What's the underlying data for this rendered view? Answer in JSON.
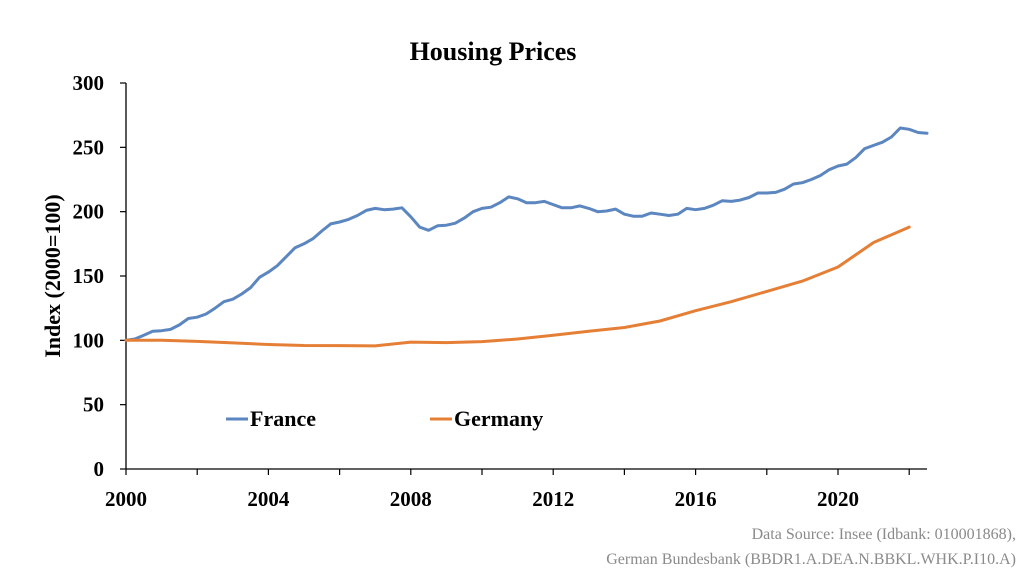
{
  "chart_data": {
    "type": "line",
    "title": "Housing Prices",
    "xlabel": "",
    "ylabel": "Index (2000=100)",
    "xlim": [
      2000,
      2022.5
    ],
    "ylim": [
      0,
      300
    ],
    "x_ticks": [
      2000,
      2004,
      2008,
      2012,
      2016,
      2020
    ],
    "x_tick_labels": [
      "2000",
      "2004",
      "2008",
      "2012",
      "2016",
      "2020"
    ],
    "y_ticks": [
      0,
      50,
      100,
      150,
      200,
      250,
      300
    ],
    "y_tick_labels": [
      "0",
      "50",
      "100",
      "150",
      "200",
      "250",
      "300"
    ],
    "grid": false,
    "legend_position": "inside-lower-center",
    "series": [
      {
        "name": "France",
        "color": "#5b86c0",
        "x": [
          2000,
          2000.25,
          2000.5,
          2000.75,
          2001,
          2001.25,
          2001.5,
          2001.75,
          2002,
          2002.25,
          2002.5,
          2002.75,
          2003,
          2003.25,
          2003.5,
          2003.75,
          2004,
          2004.25,
          2004.5,
          2004.75,
          2005,
          2005.25,
          2005.5,
          2005.75,
          2006,
          2006.25,
          2006.5,
          2006.75,
          2007,
          2007.25,
          2007.5,
          2007.75,
          2008,
          2008.25,
          2008.5,
          2008.75,
          2009,
          2009.25,
          2009.5,
          2009.75,
          2010,
          2010.25,
          2010.5,
          2010.75,
          2011,
          2011.25,
          2011.5,
          2011.75,
          2012,
          2012.25,
          2012.5,
          2012.75,
          2013,
          2013.25,
          2013.5,
          2013.75,
          2014,
          2014.25,
          2014.5,
          2014.75,
          2015,
          2015.25,
          2015.5,
          2015.75,
          2016,
          2016.25,
          2016.5,
          2016.75,
          2017,
          2017.25,
          2017.5,
          2017.75,
          2018,
          2018.25,
          2018.5,
          2018.75,
          2019,
          2019.25,
          2019.5,
          2019.75,
          2020,
          2020.25,
          2020.5,
          2020.75,
          2021,
          2021.25,
          2021.5,
          2021.75,
          2022,
          2022.25,
          2022.5
        ],
        "values": [
          100,
          101,
          104,
          107,
          107.5,
          108.5,
          112,
          117,
          118,
          120.5,
          125,
          130,
          132,
          136,
          141,
          149,
          153,
          158,
          165,
          172,
          175,
          179,
          185,
          190.5,
          192,
          194,
          197,
          201,
          202.5,
          201.5,
          202,
          203,
          196,
          188,
          185.5,
          189,
          189.5,
          191,
          195,
          200,
          202.5,
          203.5,
          207,
          211.5,
          210,
          207,
          207,
          208,
          205.5,
          203,
          203,
          204.5,
          202.5,
          200,
          200.5,
          202,
          198,
          196.5,
          196.5,
          199,
          198,
          197,
          198,
          202.5,
          201.5,
          202.5,
          205,
          208.5,
          208,
          209,
          211,
          214.5,
          214.5,
          215,
          217.5,
          221.5,
          222.5,
          225,
          228,
          232.5,
          235.5,
          237,
          242,
          249,
          251.5,
          254,
          258,
          265,
          264,
          261.5,
          261
        ]
      },
      {
        "name": "Germany",
        "color": "#e57f36",
        "x": [
          2000,
          2001,
          2002,
          2003,
          2004,
          2005,
          2006,
          2007,
          2008,
          2009,
          2010,
          2011,
          2012,
          2013,
          2014,
          2015,
          2016,
          2017,
          2018,
          2019,
          2020,
          2021,
          2022
        ],
        "values": [
          100,
          100,
          99.2,
          98,
          96.8,
          96,
          95.9,
          95.7,
          98.6,
          98.2,
          99,
          101,
          104,
          107,
          110,
          115,
          123,
          130,
          138,
          146,
          157,
          176,
          188
        ]
      }
    ]
  },
  "source": {
    "line1": "Data Source: Insee (Idbank: 010001868),",
    "line2": "German Bundesbank (BBDR1.A.DEA.N.BBKL.WHK.P.I10.A)"
  }
}
